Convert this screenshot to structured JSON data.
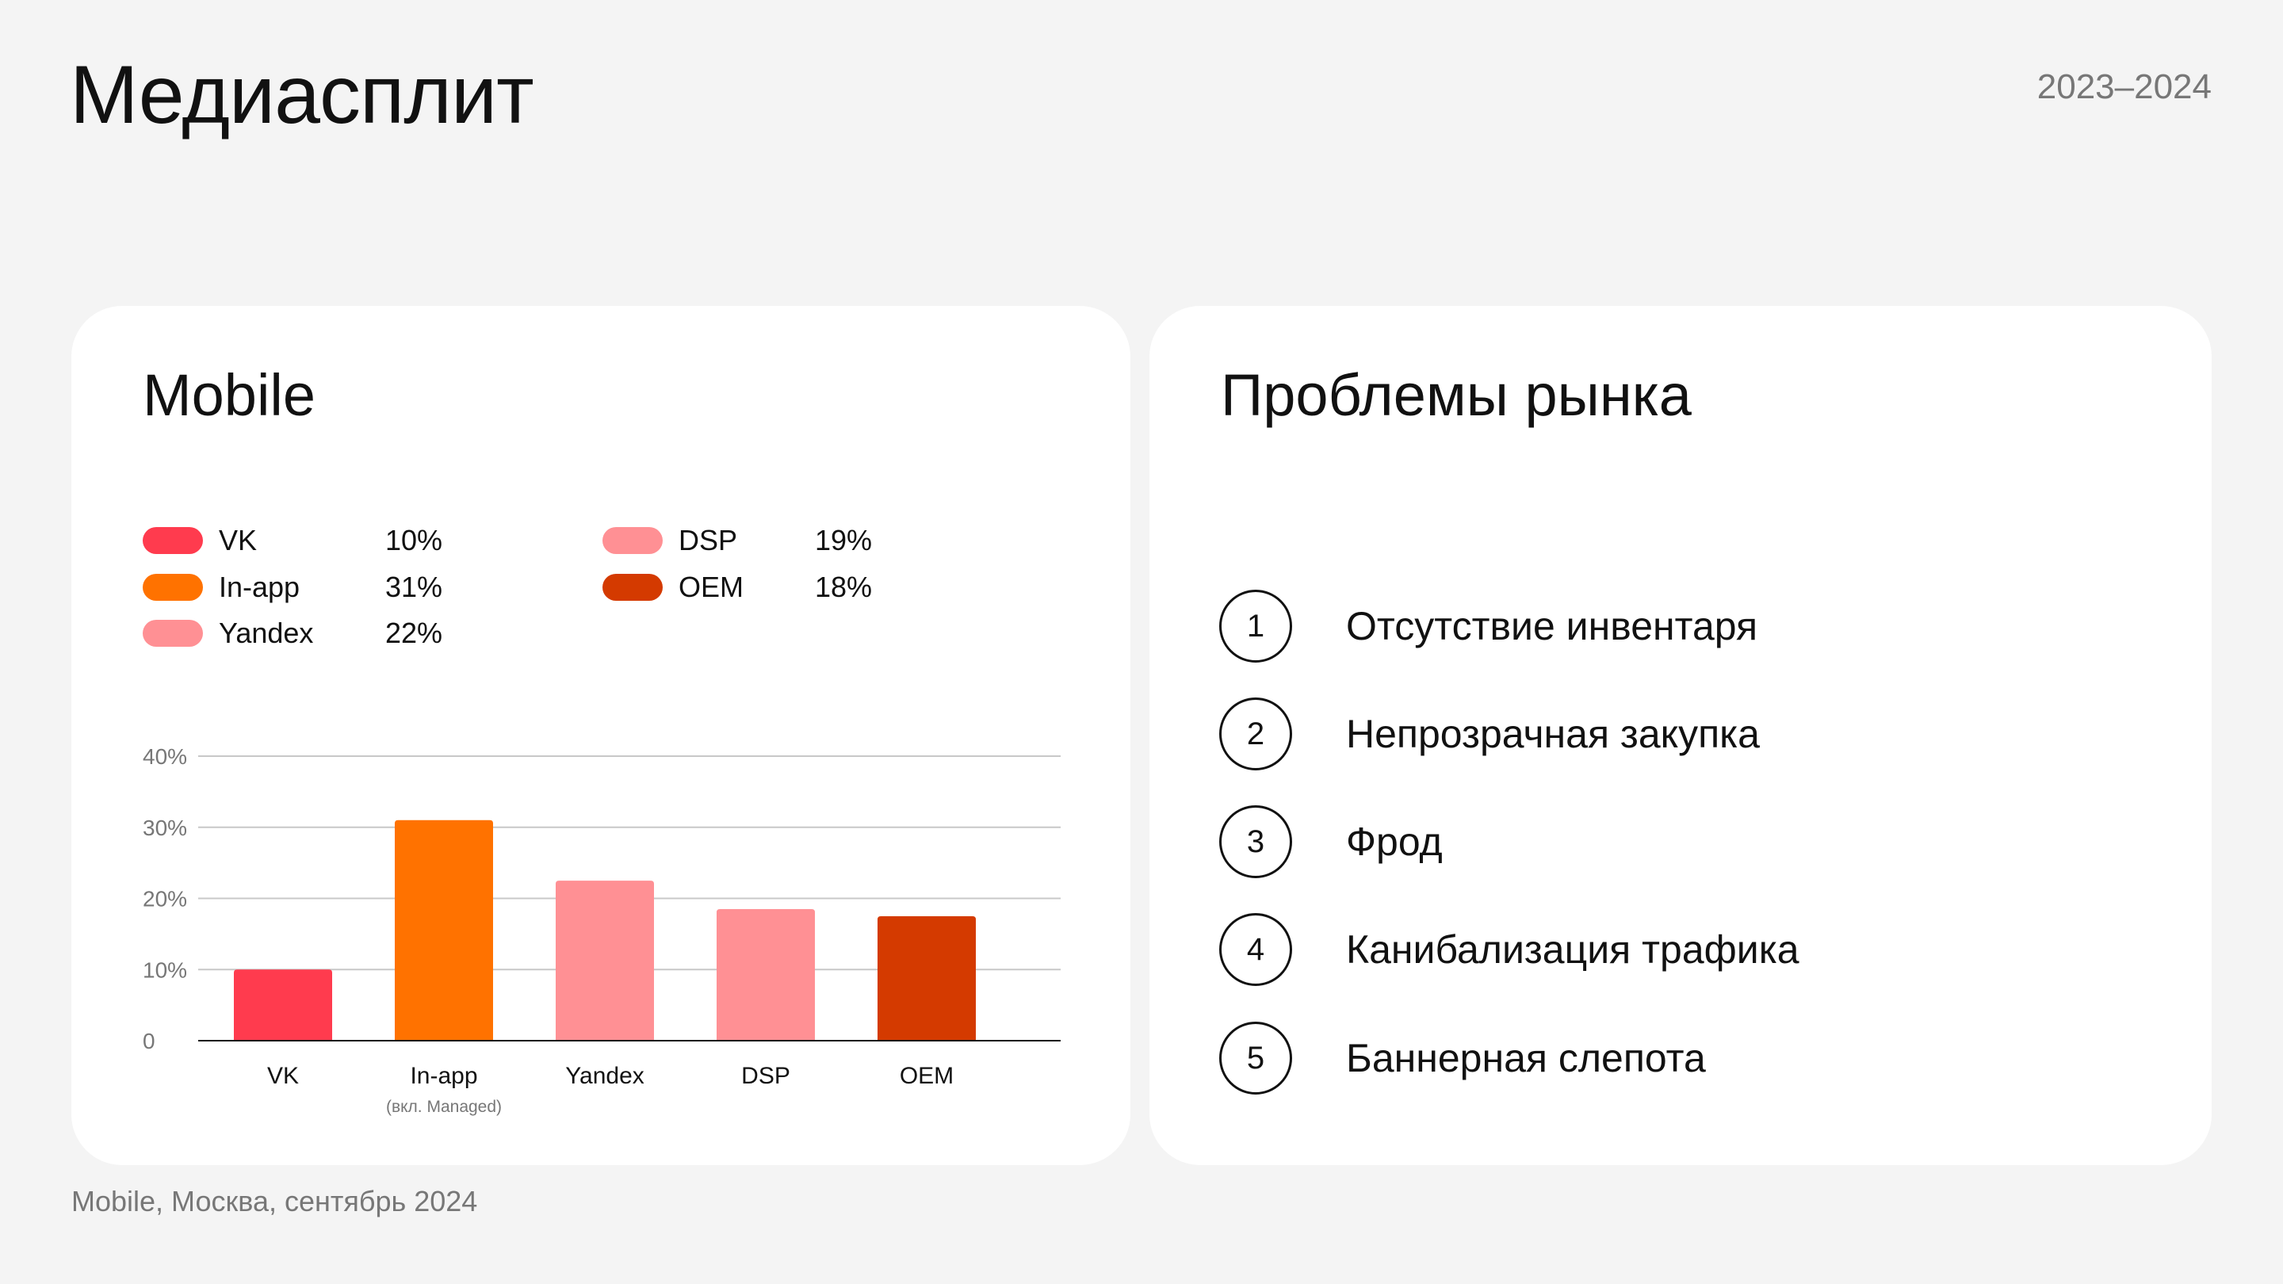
{
  "title": "Медиасплит",
  "period": "2023–2024",
  "left_card": {
    "title": "Mobile",
    "legend": [
      {
        "label": "VK",
        "value": "10%",
        "color": "#ff3b4e"
      },
      {
        "label": "In-app",
        "value": "31%",
        "color": "#ff7200"
      },
      {
        "label": "Yandex",
        "value": "22%",
        "color": "#ff9094"
      },
      {
        "label": "DSP",
        "value": "19%",
        "color": "#ff9094"
      },
      {
        "label": "OEM",
        "value": "18%",
        "color": "#d43a00"
      }
    ]
  },
  "chart_data": {
    "type": "bar",
    "categories": [
      "VK",
      "In-app",
      "Yandex",
      "DSP",
      "OEM"
    ],
    "category_notes": [
      "",
      "(вкл. Managed)",
      "",
      "",
      ""
    ],
    "values": [
      10,
      31,
      22.5,
      18.5,
      17.5
    ],
    "colors": [
      "#ff3b4e",
      "#ff7200",
      "#ff9094",
      "#ff9094",
      "#d43a00"
    ],
    "ylim": [
      0,
      40
    ],
    "yticks": [
      0,
      10,
      20,
      30,
      40
    ],
    "ytick_labels": [
      "0",
      "10%",
      "20%",
      "30%",
      "40%"
    ],
    "grid": true,
    "title": "",
    "xlabel": "",
    "ylabel": ""
  },
  "right_card": {
    "title": "Проблемы рынка",
    "problems": [
      {
        "num": "1",
        "text": "Отсутствие инвентаря"
      },
      {
        "num": "2",
        "text": "Непрозрачная закупка"
      },
      {
        "num": "3",
        "text": "Фрод"
      },
      {
        "num": "4",
        "text": "Канибализация трафика"
      },
      {
        "num": "5",
        "text": "Баннерная слепота"
      }
    ]
  },
  "footer": "Mobile, Москва, сентябрь 2024"
}
